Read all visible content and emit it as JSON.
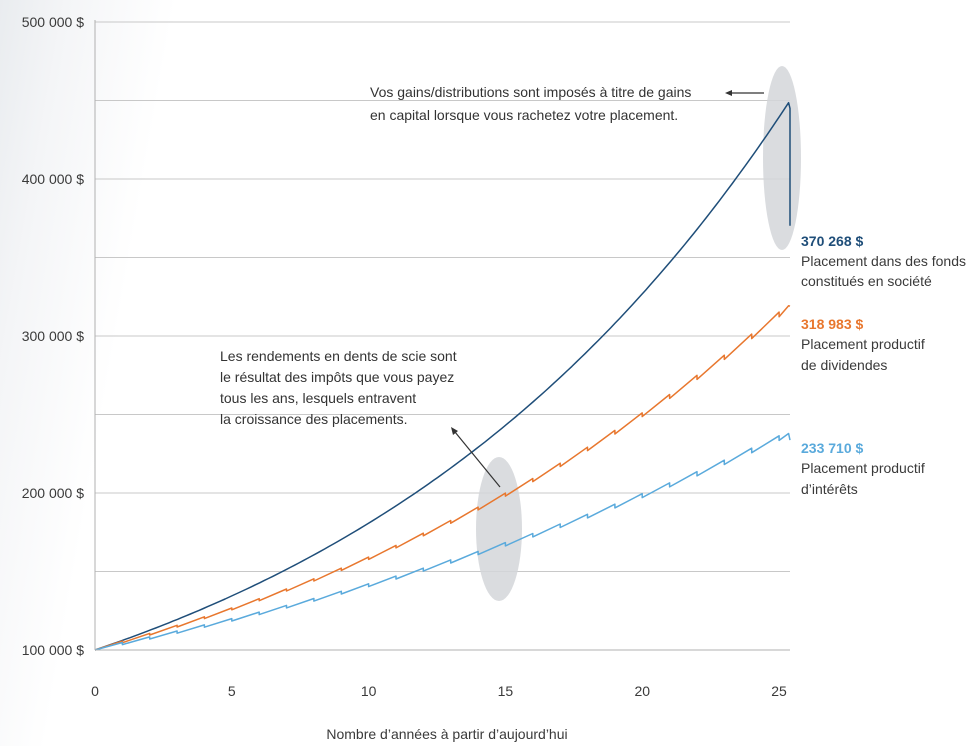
{
  "chart_data": {
    "type": "line",
    "xlabel": "Nombre d’années à partir d’aujourd’hui",
    "xlim": [
      0,
      25.4
    ],
    "ylim": [
      100000,
      500000
    ],
    "x_ticks": [
      0,
      5,
      10,
      15,
      20,
      25
    ],
    "x_tick_labels": [
      "0",
      "5",
      "10",
      "15",
      "20",
      "25"
    ],
    "y_ticks": [
      100000,
      200000,
      300000,
      400000,
      500000
    ],
    "y_tick_labels": [
      "100 000 $",
      "200 000 $",
      "300 000 $",
      "400 000 $",
      "500 000 $"
    ],
    "grid": true,
    "series": [
      {
        "name": "Placement dans des fonds constitués en société",
        "end_value_label": "370 268 $",
        "label_lines": [
          "Placement dans des fonds",
          "constitués en société"
        ],
        "color": "#1f4e79",
        "pattern": "smooth",
        "growth_per_year": 0.061,
        "final_value": 370268,
        "peak_value": 445000
      },
      {
        "name": "Placement productif de dividendes",
        "end_value_label": "318 983 $",
        "label_lines": [
          "Placement productif",
          "de dividendes"
        ],
        "color": "#e8772e",
        "pattern": "sawtooth",
        "growth_per_year": 0.0466,
        "tax_drop_pct": 0.01,
        "final_value": 318983
      },
      {
        "name": "Placement productif d’intérêts",
        "end_value_label": "233 710 $",
        "label_lines": [
          "Placement productif",
          "d’intérêts"
        ],
        "color": "#5aaadc",
        "pattern": "sawtooth",
        "growth_per_year": 0.0345,
        "tax_drop_pct": 0.013,
        "final_value": 233710
      }
    ],
    "annotations": [
      {
        "id": "capital-gains",
        "lines": [
          "Vos gains/distributions sont imposés à titre de gains",
          "en capital lorsque vous rachetez votre placement."
        ]
      },
      {
        "id": "sawtooth",
        "lines": [
          "Les rendements en dents de scie sont",
          "le résultat des impôts que vous payez",
          "tous les ans, lesquels entravent",
          "la croissance des placements."
        ]
      }
    ]
  },
  "colors": {
    "grid": "#c8c8c8",
    "highlight": "#d4d6d9",
    "arrow": "#333333"
  }
}
